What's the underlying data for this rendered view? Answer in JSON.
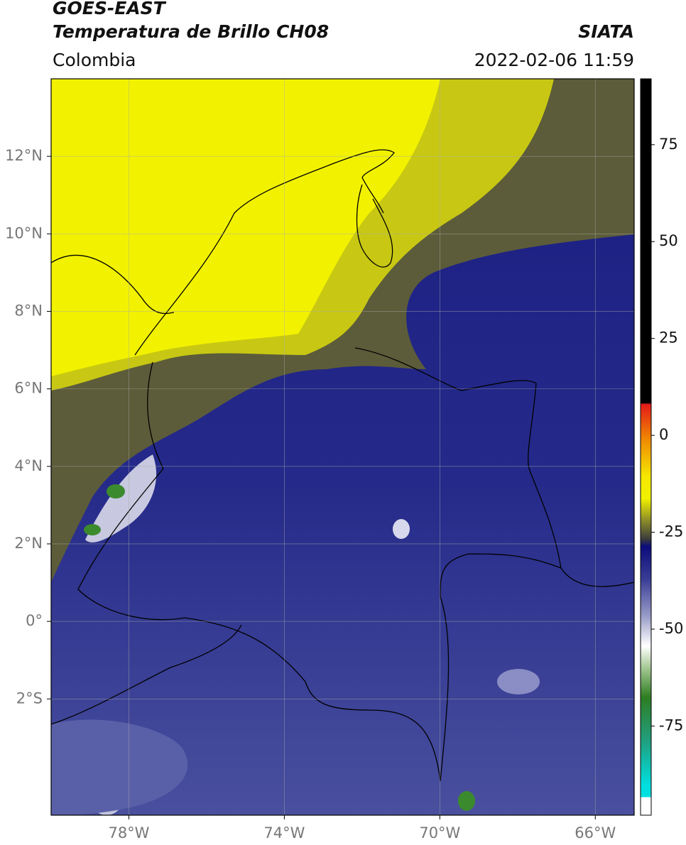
{
  "header": {
    "satellite": "GOES-EAST",
    "product": "Temperatura de Brillo CH08",
    "region": "Colombia",
    "agency": "SIATA",
    "datetime": "2022-02-06 11:59"
  },
  "map": {
    "xlim": [
      -80,
      -65
    ],
    "ylim": [
      -5,
      14
    ],
    "xticks": [
      {
        "value": -78,
        "label": "78°W"
      },
      {
        "value": -74,
        "label": "74°W"
      },
      {
        "value": -70,
        "label": "70°W"
      },
      {
        "value": -66,
        "label": "66°W"
      }
    ],
    "yticks": [
      {
        "value": 12,
        "label": "12°N"
      },
      {
        "value": 10,
        "label": "10°N"
      },
      {
        "value": 8,
        "label": "8°N"
      },
      {
        "value": 6,
        "label": "6°N"
      },
      {
        "value": 4,
        "label": "4°N"
      },
      {
        "value": 2,
        "label": "2°N"
      },
      {
        "value": 0,
        "label": "0°"
      },
      {
        "value": -2,
        "label": "2°S"
      }
    ],
    "grid": true
  },
  "colorbar": {
    "lim": [
      -98,
      92
    ],
    "ticks": [
      75,
      50,
      25,
      0,
      -25,
      -50,
      -75
    ]
  }
}
